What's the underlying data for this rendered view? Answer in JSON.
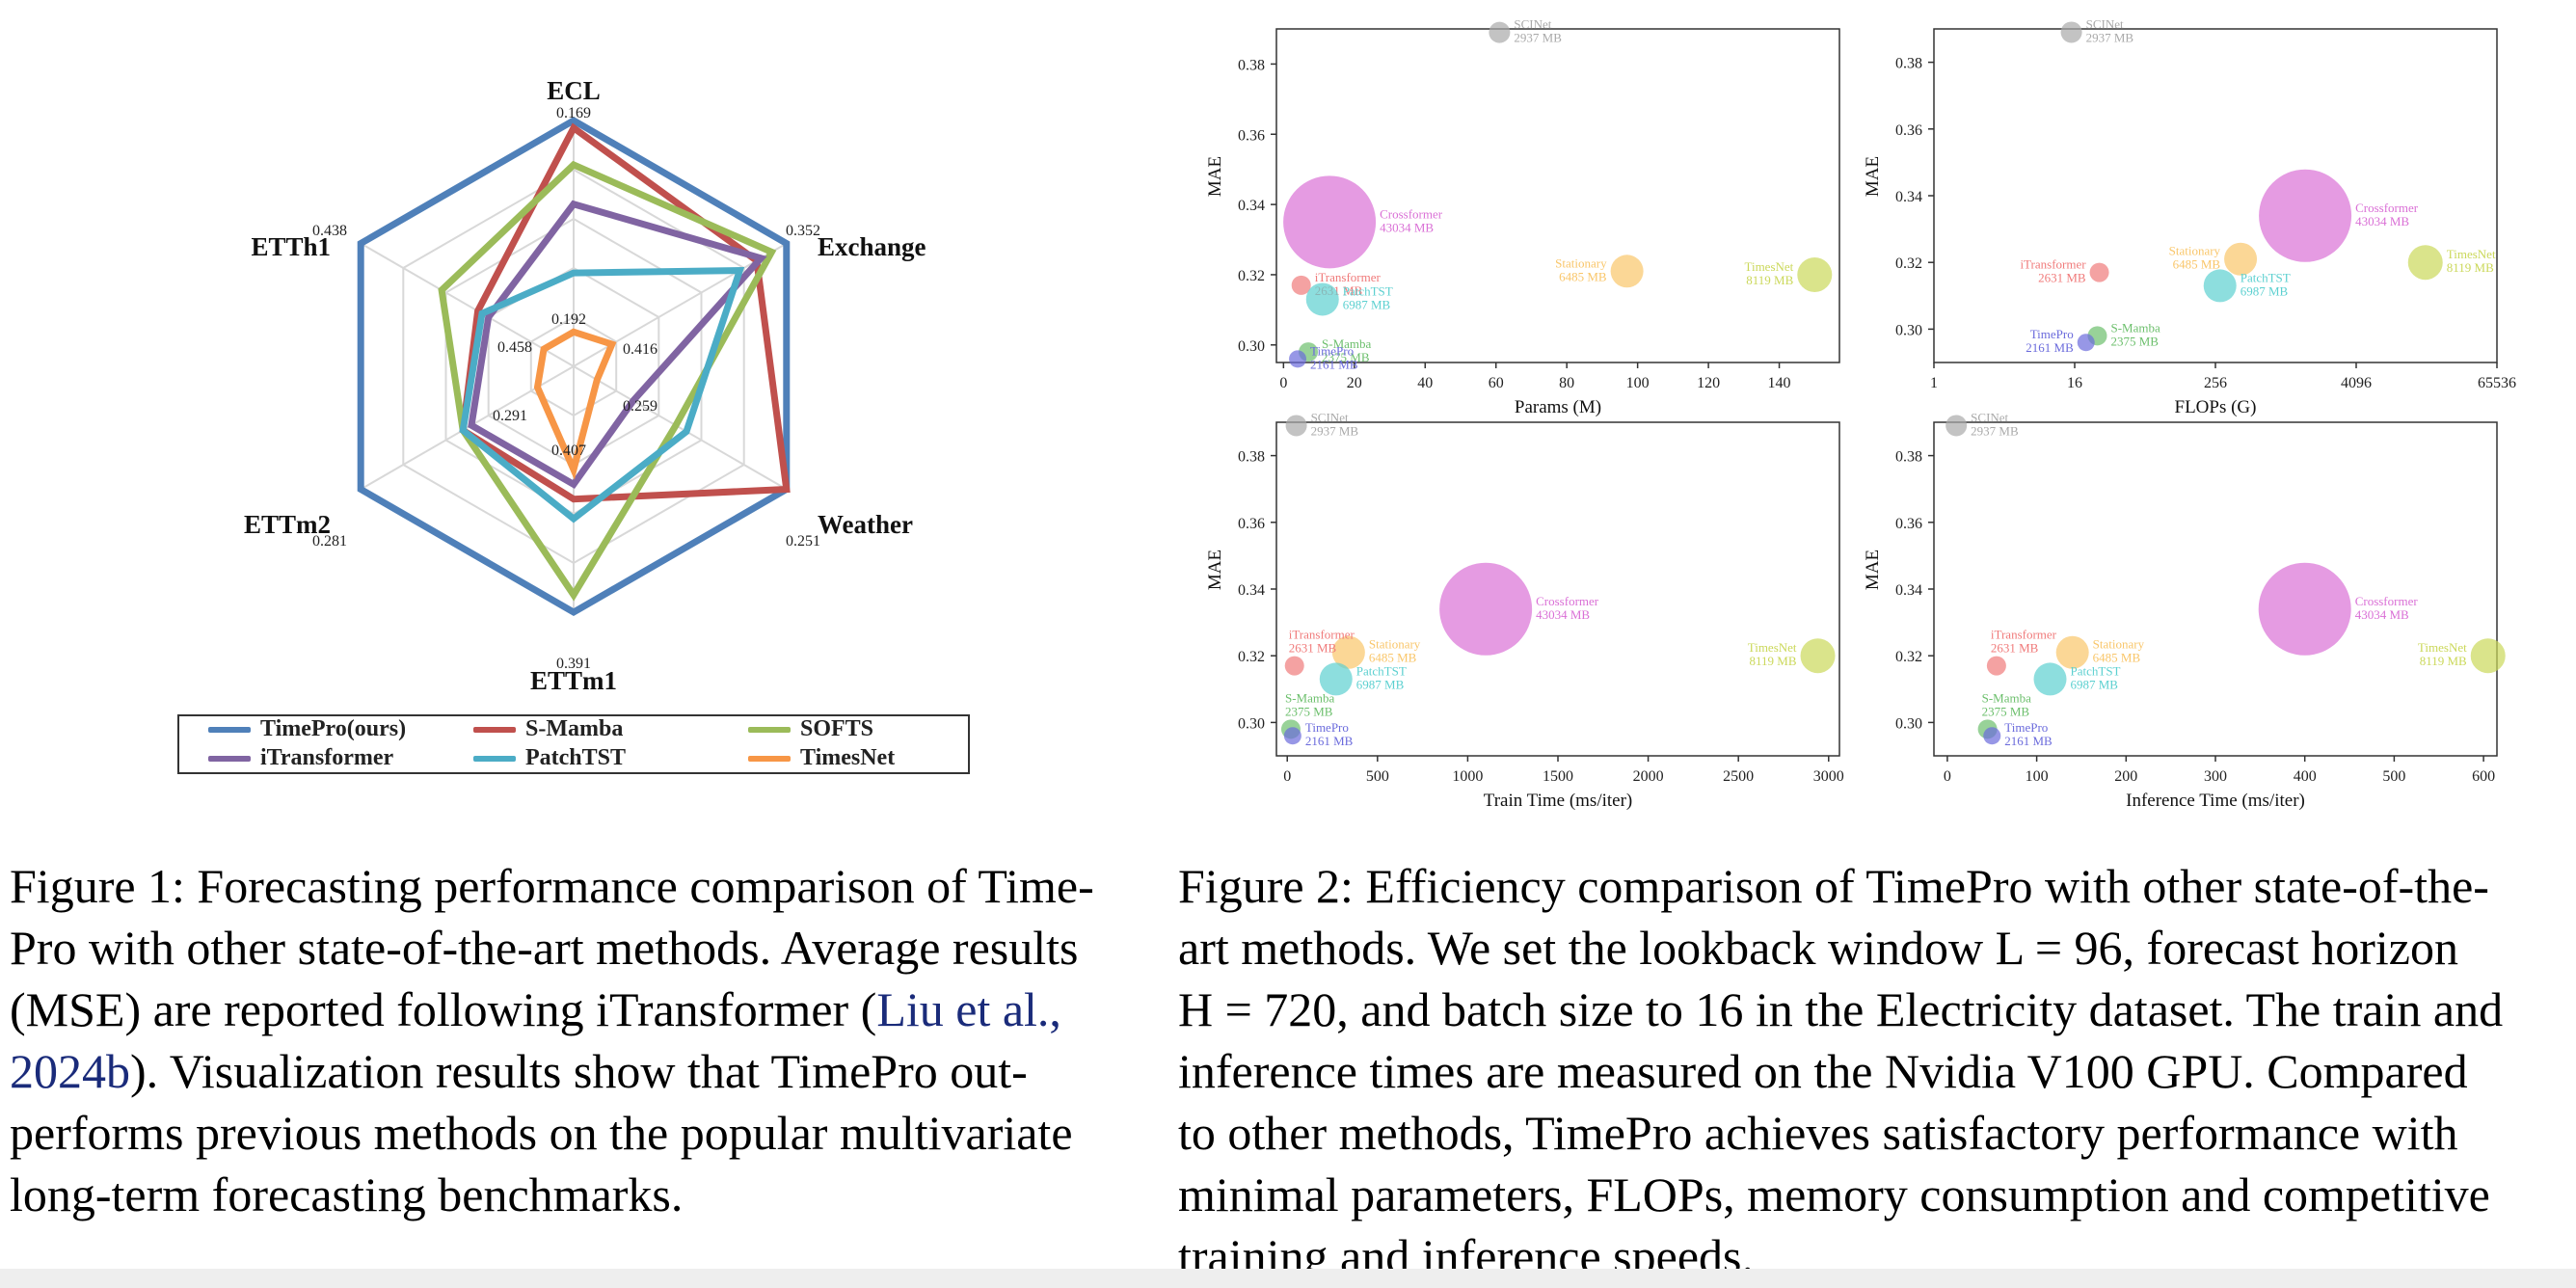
{
  "figure1": {
    "axes": [
      {
        "name": "ECL",
        "value_label": "0.169",
        "inner_label": "0.192"
      },
      {
        "name": "Exchange",
        "value_label": "0.352",
        "inner_label": "0.416"
      },
      {
        "name": "Weather",
        "value_label": "0.251",
        "inner_label": "0.259"
      },
      {
        "name": "ETTm1",
        "value_label": "0.391",
        "inner_label": "0.407"
      },
      {
        "name": "ETTm2",
        "value_label": "0.281",
        "inner_label": "0.291"
      },
      {
        "name": "ETTh1",
        "value_label": "0.438",
        "inner_label": "0.458"
      }
    ],
    "legend": [
      {
        "label": "TimePro(ours)",
        "color": "#4f80b9"
      },
      {
        "label": "S-Mamba",
        "color": "#c0504d"
      },
      {
        "label": "SOFTS",
        "color": "#9bbb59"
      },
      {
        "label": "iTransformer",
        "color": "#8064a2"
      },
      {
        "label": "PatchTST",
        "color": "#4bacc6"
      },
      {
        "label": "TimesNet",
        "color": "#f79646"
      }
    ],
    "caption_lines": [
      "Figure 1: Forecasting performance comparison of Time-",
      "Pro with other state-of-the-art methods. Average results",
      "(MSE) are reported following iTransformer (",
      "Liu et al.,",
      "2024b",
      "). Visualization results show that TimePro out-",
      "performs previous methods on the popular multivariate",
      "long-term forecasting benchmarks."
    ]
  },
  "figure2": {
    "caption_lines": [
      "Figure 2: Efficiency comparison of TimePro with other state-of-the-",
      "art methods. We set the lookback window L = 96, forecast horizon",
      "H = 720, and batch size to 16 in the Electricity dataset. The train and",
      "inference times are measured on the Nvidia V100 GPU. Compared",
      "to other methods, TimePro achieves satisfactory performance with",
      "minimal parameters, FLOPs, memory consumption and competitive",
      "training and inference speeds."
    ]
  },
  "chart_data": [
    {
      "type": "radar",
      "axes": [
        "ECL",
        "Exchange",
        "Weather",
        "ETTm1",
        "ETTm2",
        "ETTh1"
      ],
      "tick_labels": {
        "outer": [
          "0.169",
          "0.352",
          "0.251",
          "0.391",
          "0.281",
          "0.438"
        ],
        "inner": [
          "0.192",
          "0.416",
          "0.259",
          "0.407",
          "0.291",
          "0.458"
        ]
      },
      "series": [
        {
          "name": "TimePro(ours)",
          "color": "#4f80b9",
          "values": [
            1.0,
            1.0,
            1.0,
            1.0,
            1.0,
            1.0
          ]
        },
        {
          "name": "S-Mamba",
          "color": "#c0504d",
          "values": [
            0.97,
            0.86,
            1.0,
            0.54,
            0.52,
            0.45
          ]
        },
        {
          "name": "SOFTS",
          "color": "#9bbb59",
          "values": [
            0.82,
            0.93,
            0.48,
            0.93,
            0.52,
            0.62
          ]
        },
        {
          "name": "iTransformer",
          "color": "#8064a2",
          "values": [
            0.66,
            0.88,
            0.28,
            0.48,
            0.48,
            0.4
          ]
        },
        {
          "name": "PatchTST",
          "color": "#4bacc6",
          "values": [
            0.38,
            0.78,
            0.53,
            0.62,
            0.52,
            0.43
          ]
        },
        {
          "name": "TimesNet",
          "color": "#f79646",
          "values": [
            0.14,
            0.18,
            0.11,
            0.42,
            0.17,
            0.14
          ]
        }
      ]
    },
    {
      "type": "scatter",
      "xlabel": "Params (M)",
      "ylabel": "MAE",
      "ylim": [
        0.295,
        0.39
      ],
      "xlim": [
        -2,
        157
      ],
      "xticks": [
        "0",
        "20",
        "40",
        "60",
        "80",
        "100",
        "120",
        "140"
      ],
      "yticks": [
        "0.30",
        "0.32",
        "0.34",
        "0.36",
        "0.38"
      ],
      "points": [
        {
          "name": "SCINet",
          "mem": "2937 MB",
          "x": 61,
          "y": 0.389,
          "r": 11,
          "color": "#a9a9a9",
          "label_side": "right"
        },
        {
          "name": "Crossformer",
          "mem": "43034 MB",
          "x": 13,
          "y": 0.335,
          "r": 48,
          "color": "#da70d6",
          "label_side": "right"
        },
        {
          "name": "Stationary",
          "mem": "6485 MB",
          "x": 97,
          "y": 0.321,
          "r": 17,
          "color": "#f9c66a",
          "label_side": "left"
        },
        {
          "name": "TimesNet",
          "mem": "8119 MB",
          "x": 150,
          "y": 0.32,
          "r": 18,
          "color": "#cbd85a",
          "label_side": "left"
        },
        {
          "name": "iTransformer",
          "mem": "2631 MB",
          "x": 5,
          "y": 0.317,
          "r": 10,
          "color": "#f07a7a",
          "label_side": "right"
        },
        {
          "name": "PatchTST",
          "mem": "6987 MB",
          "x": 11,
          "y": 0.313,
          "r": 17,
          "color": "#5cd0d0",
          "label_side": "right"
        },
        {
          "name": "S-Mamba",
          "mem": "2375 MB",
          "x": 7,
          "y": 0.298,
          "r": 10,
          "color": "#6cbf6c",
          "label_side": "right"
        },
        {
          "name": "TimePro",
          "mem": "2161 MB",
          "x": 4,
          "y": 0.296,
          "r": 9,
          "color": "#6b6bdc",
          "label_side": "right"
        }
      ]
    },
    {
      "type": "scatter",
      "xlabel": "FLOPs (G)",
      "ylabel": "MAE",
      "ylim": [
        0.29,
        0.39
      ],
      "xscale": "log2",
      "xticks": [
        "1",
        "16",
        "256",
        "4096",
        "65536"
      ],
      "yticks": [
        "0.30",
        "0.32",
        "0.34",
        "0.36",
        "0.38"
      ],
      "points": [
        {
          "name": "SCINet",
          "mem": "2937 MB",
          "x": 15,
          "y": 0.389,
          "r": 11,
          "color": "#a9a9a9",
          "label_side": "right"
        },
        {
          "name": "Crossformer",
          "mem": "43034 MB",
          "x": 1500,
          "y": 0.334,
          "r": 48,
          "color": "#da70d6",
          "label_side": "right"
        },
        {
          "name": "Stationary",
          "mem": "6485 MB",
          "x": 420,
          "y": 0.321,
          "r": 17,
          "color": "#f9c66a",
          "label_side": "left"
        },
        {
          "name": "TimesNet",
          "mem": "8119 MB",
          "x": 16000,
          "y": 0.32,
          "r": 18,
          "color": "#cbd85a",
          "label_side": "right"
        },
        {
          "name": "iTransformer",
          "mem": "2631 MB",
          "x": 26,
          "y": 0.317,
          "r": 10,
          "color": "#f07a7a",
          "label_side": "left"
        },
        {
          "name": "PatchTST",
          "mem": "6987 MB",
          "x": 280,
          "y": 0.313,
          "r": 17,
          "color": "#5cd0d0",
          "label_side": "right"
        },
        {
          "name": "S-Mamba",
          "mem": "2375 MB",
          "x": 25,
          "y": 0.298,
          "r": 10,
          "color": "#6cbf6c",
          "label_side": "right"
        },
        {
          "name": "TimePro",
          "mem": "2161 MB",
          "x": 20,
          "y": 0.296,
          "r": 9,
          "color": "#6b6bdc",
          "label_side": "left"
        }
      ]
    },
    {
      "type": "scatter",
      "xlabel": "Train Time (ms/iter)",
      "ylabel": "MAE",
      "ylim": [
        0.29,
        0.39
      ],
      "xlim": [
        -60,
        3060
      ],
      "xticks": [
        "0",
        "500",
        "1000",
        "1500",
        "2000",
        "2500",
        "3000"
      ],
      "yticks": [
        "0.30",
        "0.32",
        "0.34",
        "0.36",
        "0.38"
      ],
      "points": [
        {
          "name": "SCINet",
          "mem": "2937 MB",
          "x": 50,
          "y": 0.389,
          "r": 11,
          "color": "#a9a9a9",
          "label_side": "right"
        },
        {
          "name": "Crossformer",
          "mem": "43034 MB",
          "x": 1100,
          "y": 0.334,
          "r": 48,
          "color": "#da70d6",
          "label_side": "right"
        },
        {
          "name": "Stationary",
          "mem": "6485 MB",
          "x": 340,
          "y": 0.321,
          "r": 17,
          "color": "#f9c66a",
          "label_side": "right"
        },
        {
          "name": "TimesNet",
          "mem": "8119 MB",
          "x": 2940,
          "y": 0.32,
          "r": 18,
          "color": "#cbd85a",
          "label_side": "left"
        },
        {
          "name": "iTransformer",
          "mem": "2631 MB",
          "x": 40,
          "y": 0.317,
          "r": 10,
          "color": "#f07a7a",
          "label_side": "above"
        },
        {
          "name": "PatchTST",
          "mem": "6987 MB",
          "x": 270,
          "y": 0.313,
          "r": 17,
          "color": "#5cd0d0",
          "label_side": "right"
        },
        {
          "name": "S-Mamba",
          "mem": "2375 MB",
          "x": 20,
          "y": 0.298,
          "r": 10,
          "color": "#6cbf6c",
          "label_side": "above"
        },
        {
          "name": "TimePro",
          "mem": "2161 MB",
          "x": 30,
          "y": 0.296,
          "r": 9,
          "color": "#6b6bdc",
          "label_side": "right"
        }
      ]
    },
    {
      "type": "scatter",
      "xlabel": "Inference Time (ms/iter)",
      "ylabel": "MAE",
      "ylim": [
        0.29,
        0.39
      ],
      "xlim": [
        -15,
        615
      ],
      "xticks": [
        "0",
        "100",
        "200",
        "300",
        "400",
        "500",
        "600"
      ],
      "yticks": [
        "0.30",
        "0.32",
        "0.34",
        "0.36",
        "0.38"
      ],
      "points": [
        {
          "name": "SCINet",
          "mem": "2937 MB",
          "x": 10,
          "y": 0.389,
          "r": 11,
          "color": "#a9a9a9",
          "label_side": "right"
        },
        {
          "name": "Crossformer",
          "mem": "43034 MB",
          "x": 400,
          "y": 0.334,
          "r": 48,
          "color": "#da70d6",
          "label_side": "right"
        },
        {
          "name": "Stationary",
          "mem": "6485 MB",
          "x": 140,
          "y": 0.321,
          "r": 17,
          "color": "#f9c66a",
          "label_side": "right"
        },
        {
          "name": "TimesNet",
          "mem": "8119 MB",
          "x": 605,
          "y": 0.32,
          "r": 18,
          "color": "#cbd85a",
          "label_side": "left"
        },
        {
          "name": "iTransformer",
          "mem": "2631 MB",
          "x": 55,
          "y": 0.317,
          "r": 10,
          "color": "#f07a7a",
          "label_side": "above"
        },
        {
          "name": "PatchTST",
          "mem": "6987 MB",
          "x": 115,
          "y": 0.313,
          "r": 17,
          "color": "#5cd0d0",
          "label_side": "right"
        },
        {
          "name": "S-Mamba",
          "mem": "2375 MB",
          "x": 45,
          "y": 0.298,
          "r": 10,
          "color": "#6cbf6c",
          "label_side": "above"
        },
        {
          "name": "TimePro",
          "mem": "2161 MB",
          "x": 50,
          "y": 0.296,
          "r": 9,
          "color": "#6b6bdc",
          "label_side": "right"
        }
      ]
    }
  ]
}
